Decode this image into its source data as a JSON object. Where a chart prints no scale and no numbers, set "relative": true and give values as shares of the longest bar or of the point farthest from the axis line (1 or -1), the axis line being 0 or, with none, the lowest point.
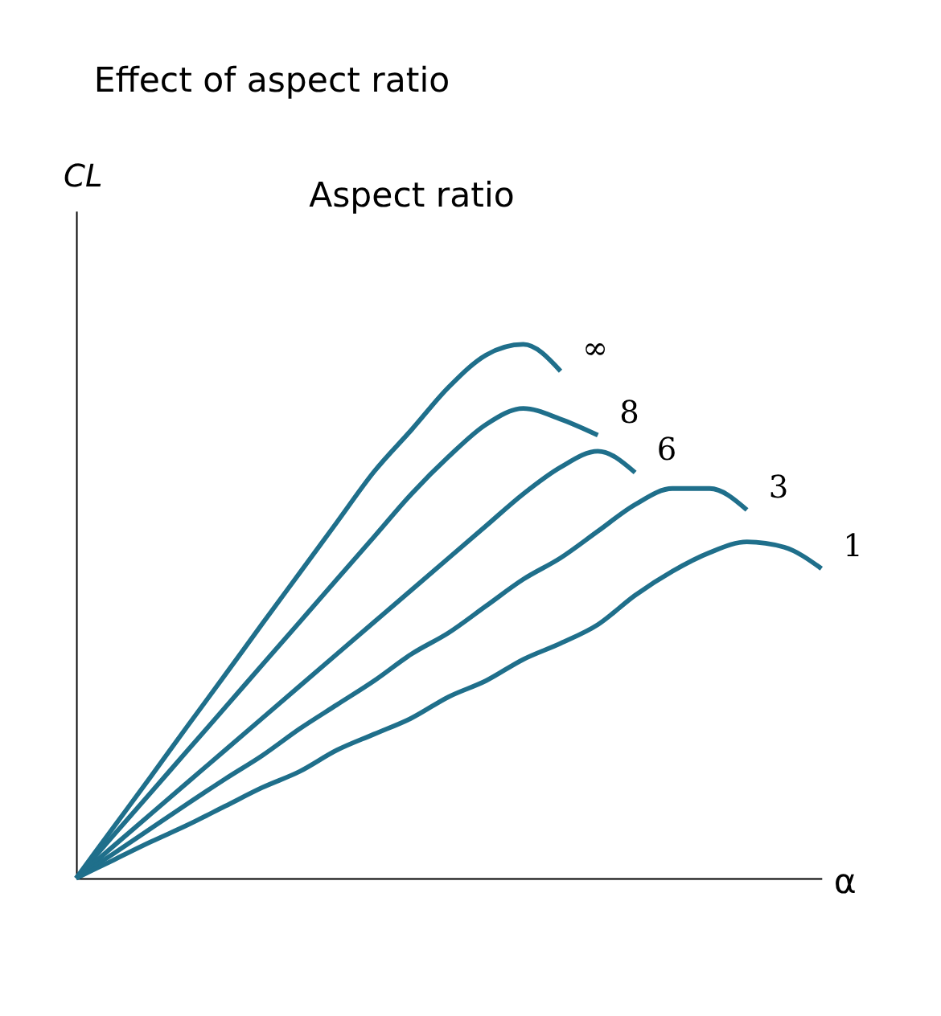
{
  "chart_data": {
    "type": "line",
    "title": "Effect of aspect ratio",
    "ylabel": "CL",
    "xlabel": "α",
    "annotations": [
      "Aspect ratio"
    ],
    "relative": true,
    "legend": false,
    "grid": false,
    "marker": "none",
    "line_style": "solid",
    "categories": [
      null,
      null,
      null,
      null,
      null,
      null,
      null,
      null,
      null,
      null,
      null,
      null,
      null,
      null,
      null,
      null,
      null,
      null,
      null,
      null,
      null
    ],
    "series": [
      {
        "name": "∞",
        "color": "#1f6f8b",
        "values": [
          0,
          0.095,
          0.19,
          0.286,
          0.381,
          0.477,
          0.572,
          0.667,
          0.762,
          0.84,
          0.92,
          0.98,
          1,
          0.95,
          null,
          null,
          null,
          null,
          null,
          null,
          null
        ]
      },
      {
        "name": "8",
        "color": "#1f6f8b",
        "values": [
          0,
          0.08,
          0.16,
          0.24,
          0.32,
          0.4,
          0.48,
          0.56,
          0.64,
          0.72,
          0.79,
          0.85,
          0.88,
          0.86,
          0.83,
          null,
          null,
          null,
          null,
          null,
          null
        ]
      },
      {
        "name": "6",
        "color": "#1f6f8b",
        "values": [
          0,
          0.06,
          0.12,
          0.18,
          0.24,
          0.3,
          0.36,
          0.42,
          0.48,
          0.54,
          0.6,
          0.66,
          0.72,
          0.77,
          0.8,
          0.76,
          null,
          null,
          null,
          null,
          null
        ]
      },
      {
        "name": "3",
        "color": "#1f6f8b",
        "values": [
          0,
          0.046,
          0.093,
          0.14,
          0.186,
          0.23,
          0.28,
          0.325,
          0.37,
          0.42,
          0.46,
          0.51,
          0.56,
          0.6,
          0.65,
          0.7,
          0.73,
          0.73,
          0.69,
          null,
          null
        ]
      },
      {
        "name": "1",
        "color": "#1f6f8b",
        "values": [
          0,
          0.034,
          0.068,
          0.1,
          0.135,
          0.17,
          0.2,
          0.24,
          0.27,
          0.3,
          0.34,
          0.37,
          0.41,
          0.44,
          0.475,
          0.53,
          0.575,
          0.61,
          0.63,
          0.62,
          0.58
        ]
      }
    ]
  }
}
